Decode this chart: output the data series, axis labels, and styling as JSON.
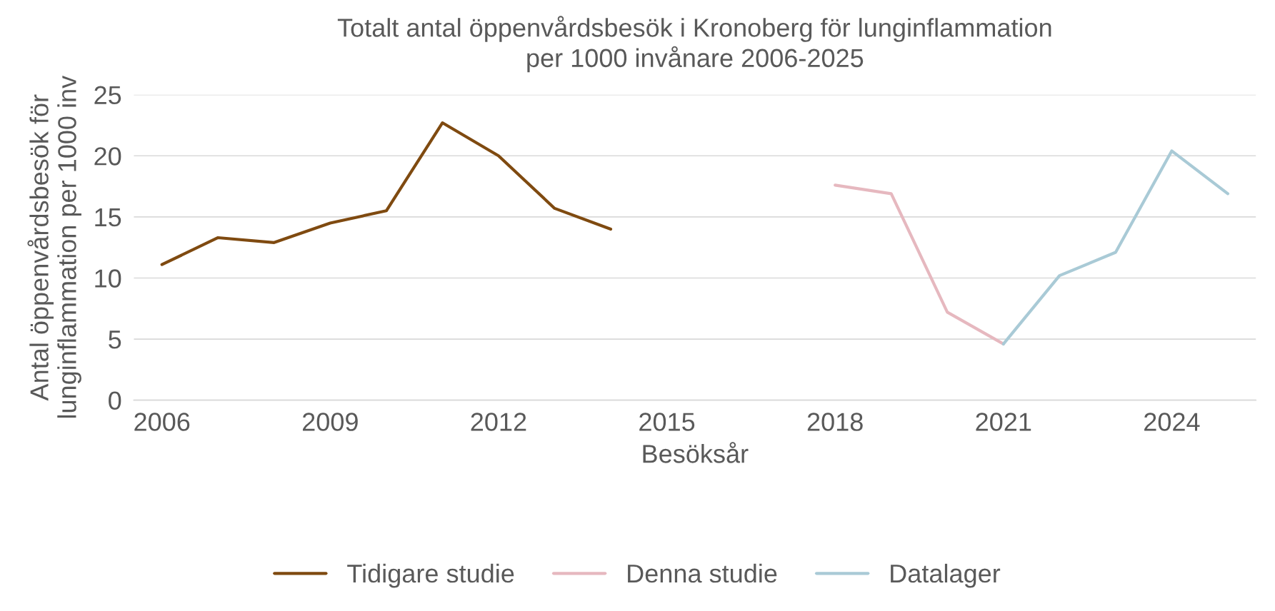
{
  "chart_data": {
    "type": "line",
    "title": "Totalt antal öppenvårdsbesök i Kronoberg för lunginflammation\nper 1000 invånare 2006-2025",
    "xlabel": "Besöksår",
    "ylabel": "Antal öppenvårdsbesök för\nlunginflammation per 1000 inv",
    "series": [
      {
        "name": "Tidigare studie",
        "color": "#7f4a10",
        "x": [
          2006,
          2007,
          2008,
          2009,
          2010,
          2011,
          2012,
          2013,
          2014
        ],
        "values": [
          11.1,
          13.3,
          12.9,
          14.5,
          15.5,
          22.7,
          20.0,
          15.7,
          14.0
        ]
      },
      {
        "name": "Denna studie",
        "color": "#e6b8bf",
        "x": [
          2018,
          2019,
          2020,
          2021
        ],
        "values": [
          17.6,
          16.9,
          7.2,
          4.6
        ]
      },
      {
        "name": "Datalager",
        "color": "#a9cad6",
        "x": [
          2021,
          2022,
          2023,
          2024,
          2025
        ],
        "values": [
          4.6,
          10.2,
          12.1,
          20.4,
          16.9
        ]
      }
    ],
    "xlim": [
      2005.5,
      2025.5
    ],
    "xticks": [
      2006,
      2009,
      2012,
      2015,
      2018,
      2021,
      2024
    ],
    "ylim": [
      0,
      25
    ],
    "yticks": [
      0,
      5,
      10,
      15,
      20,
      25
    ],
    "grid": "y",
    "legend": "bottom",
    "marker": "none",
    "line_style": "solid"
  }
}
